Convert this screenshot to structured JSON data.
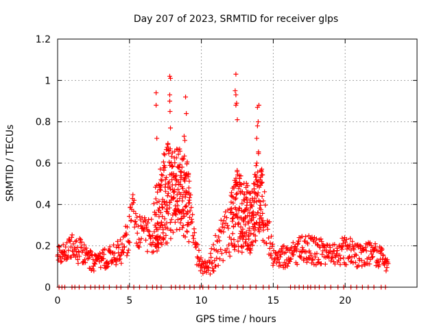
{
  "chart_data": {
    "type": "scatter",
    "title": "Day 207 of 2023, SRMTID for receiver glps",
    "xlabel": "GPS time / hours",
    "ylabel": "SRMTID / TECUs",
    "xlim": [
      0,
      25
    ],
    "ylim": [
      0,
      1.2
    ],
    "xticks": [
      0,
      5,
      10,
      15,
      20
    ],
    "xtick_labels": [
      "0",
      "5",
      "10",
      "15",
      "20"
    ],
    "yticks": [
      0,
      0.2,
      0.4,
      0.6,
      0.8,
      1,
      1.2
    ],
    "ytick_labels": [
      "0",
      "0.2",
      "0.4",
      "0.6",
      "0.8",
      "1",
      "1.2"
    ],
    "grid": true,
    "marker": "+",
    "marker_color": "#ff0000",
    "series": [
      {
        "name": "SRMTID",
        "description_points": "dense time series sampled from 0 to ~23 hours",
        "envelope": [
          {
            "t": 0.0,
            "base": 0.16,
            "spread": 0.06
          },
          {
            "t": 1.0,
            "base": 0.19,
            "spread": 0.07
          },
          {
            "t": 2.0,
            "base": 0.15,
            "spread": 0.06
          },
          {
            "t": 2.5,
            "base": 0.11,
            "spread": 0.04
          },
          {
            "t": 3.5,
            "base": 0.14,
            "spread": 0.05
          },
          {
            "t": 4.5,
            "base": 0.17,
            "spread": 0.06
          },
          {
            "t": 5.0,
            "base": 0.26,
            "spread": 0.1
          },
          {
            "t": 5.2,
            "base": 0.45,
            "spread": 0.06
          },
          {
            "t": 5.5,
            "base": 0.25,
            "spread": 0.08
          },
          {
            "t": 6.5,
            "base": 0.25,
            "spread": 0.1
          },
          {
            "t": 7.0,
            "base": 0.35,
            "spread": 0.2
          },
          {
            "t": 7.8,
            "base": 0.45,
            "spread": 0.25
          },
          {
            "t": 8.5,
            "base": 0.45,
            "spread": 0.2
          },
          {
            "t": 9.0,
            "base": 0.4,
            "spread": 0.2
          },
          {
            "t": 9.5,
            "base": 0.2,
            "spread": 0.08
          },
          {
            "t": 10.0,
            "base": 0.1,
            "spread": 0.04
          },
          {
            "t": 10.5,
            "base": 0.08,
            "spread": 0.04
          },
          {
            "t": 11.0,
            "base": 0.18,
            "spread": 0.1
          },
          {
            "t": 11.8,
            "base": 0.25,
            "spread": 0.12
          },
          {
            "t": 12.5,
            "base": 0.35,
            "spread": 0.2
          },
          {
            "t": 13.5,
            "base": 0.3,
            "spread": 0.15
          },
          {
            "t": 14.0,
            "base": 0.45,
            "spread": 0.2
          },
          {
            "t": 14.5,
            "base": 0.3,
            "spread": 0.12
          },
          {
            "t": 15.0,
            "base": 0.15,
            "spread": 0.06
          },
          {
            "t": 16.0,
            "base": 0.14,
            "spread": 0.05
          },
          {
            "t": 17.0,
            "base": 0.18,
            "spread": 0.07
          },
          {
            "t": 18.0,
            "base": 0.17,
            "spread": 0.07
          },
          {
            "t": 19.0,
            "base": 0.15,
            "spread": 0.05
          },
          {
            "t": 20.0,
            "base": 0.17,
            "spread": 0.07
          },
          {
            "t": 21.0,
            "base": 0.15,
            "spread": 0.06
          },
          {
            "t": 22.0,
            "base": 0.16,
            "spread": 0.06
          },
          {
            "t": 23.0,
            "base": 0.11,
            "spread": 0.04
          }
        ],
        "peaks": [
          {
            "x": 6.85,
            "y": 0.94
          },
          {
            "x": 6.85,
            "y": 0.88
          },
          {
            "x": 6.9,
            "y": 0.72
          },
          {
            "x": 7.8,
            "y": 1.02
          },
          {
            "x": 7.85,
            "y": 1.01
          },
          {
            "x": 7.8,
            "y": 0.93
          },
          {
            "x": 7.8,
            "y": 0.9
          },
          {
            "x": 7.82,
            "y": 0.85
          },
          {
            "x": 7.85,
            "y": 0.77
          },
          {
            "x": 8.8,
            "y": 0.73
          },
          {
            "x": 8.85,
            "y": 0.71
          },
          {
            "x": 8.9,
            "y": 0.92
          },
          {
            "x": 8.95,
            "y": 0.84
          },
          {
            "x": 12.4,
            "y": 1.03
          },
          {
            "x": 12.35,
            "y": 0.95
          },
          {
            "x": 12.4,
            "y": 0.93
          },
          {
            "x": 12.45,
            "y": 0.89
          },
          {
            "x": 12.4,
            "y": 0.88
          },
          {
            "x": 12.5,
            "y": 0.81
          },
          {
            "x": 13.9,
            "y": 0.87
          },
          {
            "x": 14.0,
            "y": 0.88
          },
          {
            "x": 13.95,
            "y": 0.8
          },
          {
            "x": 13.9,
            "y": 0.78
          },
          {
            "x": 13.85,
            "y": 0.72
          }
        ],
        "zero_points_hours": [
          0.1,
          0.3,
          0.5,
          1.0,
          1.2,
          1.5,
          1.9,
          2.3,
          2.6,
          2.9,
          3.2,
          3.6,
          4.1,
          4.4,
          4.9,
          5.3,
          5.7,
          6.2,
          6.6,
          6.9,
          7.2,
          7.9,
          8.2,
          8.5,
          8.8,
          9.2,
          9.5,
          9.9,
          10.1,
          10.5,
          11.0,
          11.5,
          12.0,
          12.5,
          12.9,
          13.4,
          13.8,
          14.3,
          14.7,
          15.3,
          16.2,
          16.5,
          16.8,
          17.1,
          17.4,
          17.6,
          17.9,
          18.2,
          18.6,
          19.0,
          19.5,
          19.9,
          20.4,
          20.8,
          21.2,
          21.6,
          22.0,
          22.5,
          22.8
        ]
      }
    ]
  }
}
